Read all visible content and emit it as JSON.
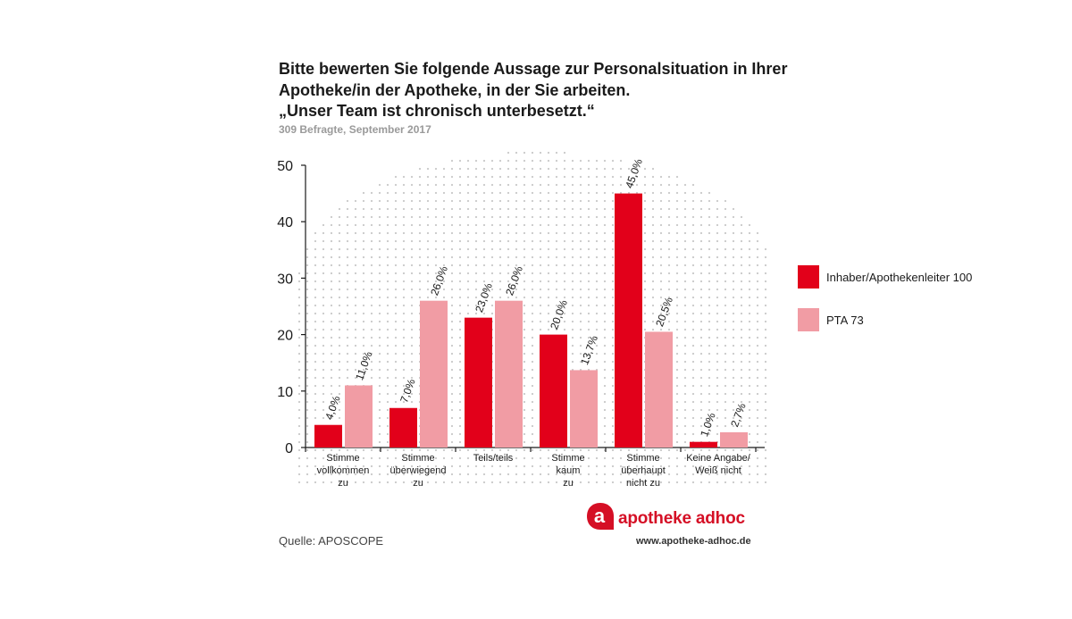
{
  "title_lines": [
    "Bitte bewerten Sie folgende Aussage zur Personalsituation in Ihrer",
    "Apotheke/in der Apotheke, in der Sie arbeiten.",
    "„Unser Team ist chronisch unterbesetzt.“"
  ],
  "subtitle": "309 Befragte, September 2017",
  "source": "Quelle: APOSCOPE",
  "brand": {
    "name": "apotheke adhoc",
    "url": "www.apotheke-adhoc.de",
    "mark_letter": "a"
  },
  "colors": {
    "series1": "#e2001a",
    "series2": "#f19ca4",
    "brand": "#d50f25",
    "dots": "#c8c8c8"
  },
  "chart_data": {
    "type": "bar",
    "title": "„Unser Team ist chronisch unterbesetzt.“",
    "ylim": [
      0,
      50
    ],
    "yticks": [
      "0",
      "10",
      "20",
      "30",
      "40",
      "50"
    ],
    "categories": [
      [
        "Stimme",
        "vollkommen",
        "zu"
      ],
      [
        "Stimme",
        "überwiegend",
        "zu"
      ],
      [
        "Teils/teils"
      ],
      [
        "Stimme",
        "kaum",
        "zu"
      ],
      [
        "Stimme",
        "überhaupt",
        "nicht zu"
      ],
      [
        "Keine Angabe/",
        "Weiß nicht"
      ]
    ],
    "series": [
      {
        "name": "Inhaber/Apothekenleiter 100",
        "values": [
          4.0,
          7.0,
          23.0,
          20.0,
          45.0,
          1.0
        ],
        "labels": [
          "4,0%",
          "7,0%",
          "23,0%",
          "20,0%",
          "45,0%",
          "1,0%"
        ]
      },
      {
        "name": "PTA 73",
        "values": [
          11.0,
          26.0,
          26.0,
          13.7,
          20.5,
          2.7
        ],
        "labels": [
          "11,0%",
          "26,0%",
          "26,0%",
          "13,7%",
          "20,5%",
          "2,7%"
        ]
      }
    ],
    "legend_position": "right"
  }
}
